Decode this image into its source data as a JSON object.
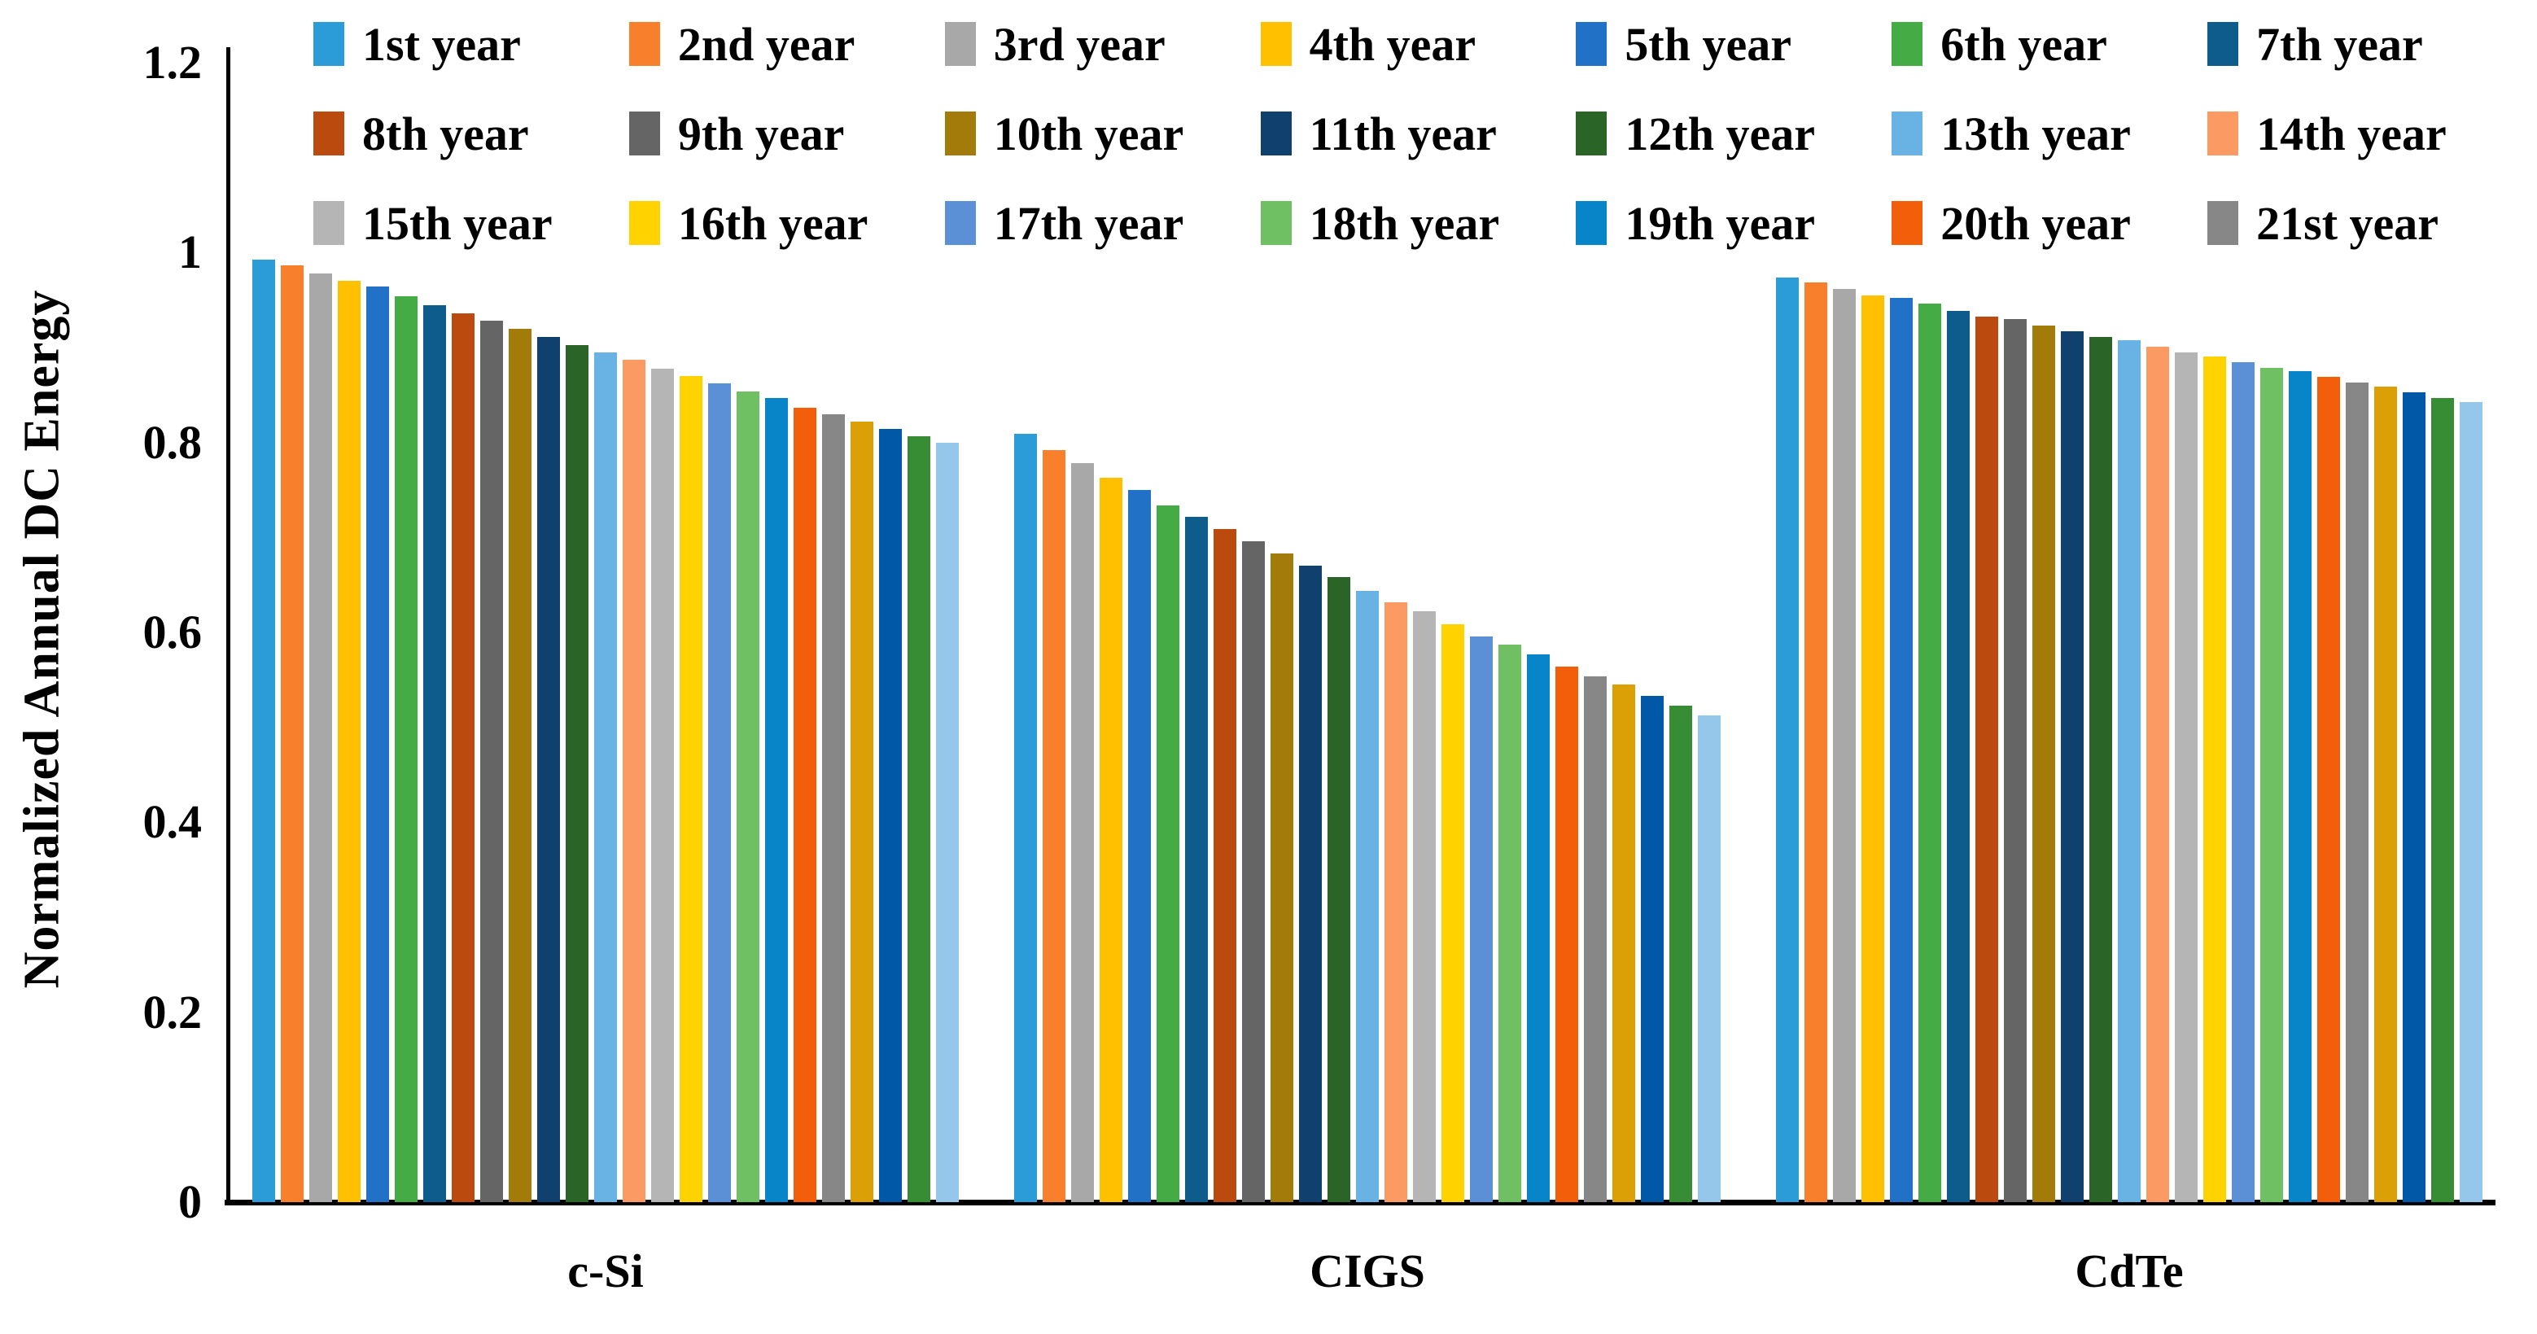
{
  "chart_data": {
    "type": "bar",
    "title": "",
    "ylabel": "Normalized Annual DC Energy",
    "xlabel": "",
    "ylim": [
      0,
      1.2
    ],
    "yticks": [
      0,
      0.2,
      0.4,
      0.6,
      0.8,
      1,
      1.2
    ],
    "ytick_labels": [
      "0",
      "0.2",
      "0.4",
      "0.6",
      "0.8",
      "1",
      "1.2"
    ],
    "grid": false,
    "legend_position": "top",
    "years_per_group": 25,
    "legend": [
      {
        "label": "1st year",
        "color": "#2B9CD8"
      },
      {
        "label": "2nd year",
        "color": "#F87F2C"
      },
      {
        "label": "3rd year",
        "color": "#A8A8A8"
      },
      {
        "label": "4th year",
        "color": "#FFC000"
      },
      {
        "label": "5th year",
        "color": "#2171C7"
      },
      {
        "label": "6th year",
        "color": "#45AB45"
      },
      {
        "label": "7th year",
        "color": "#0E5C8C"
      },
      {
        "label": "8th year",
        "color": "#BB4A0F"
      },
      {
        "label": "9th year",
        "color": "#656565"
      },
      {
        "label": "10th year",
        "color": "#A37B0A"
      },
      {
        "label": "11th year",
        "color": "#0F406E"
      },
      {
        "label": "12th year",
        "color": "#2A6426"
      },
      {
        "label": "13th year",
        "color": "#68B3E4"
      },
      {
        "label": "14th year",
        "color": "#FB9A62"
      },
      {
        "label": "15th year",
        "color": "#B5B5B5"
      },
      {
        "label": "16th year",
        "color": "#FFD200"
      },
      {
        "label": "17th year",
        "color": "#5B8FD6"
      },
      {
        "label": "18th year",
        "color": "#6EC063"
      },
      {
        "label": "19th year",
        "color": "#0884C9"
      },
      {
        "label": "20th year",
        "color": "#F25E0A"
      },
      {
        "label": "21st year",
        "color": "#878787"
      }
    ],
    "palette": [
      "#2B9CD8",
      "#F87F2C",
      "#A8A8A8",
      "#FFC000",
      "#2171C7",
      "#45AB45",
      "#0E5C8C",
      "#BB4A0F",
      "#656565",
      "#A37B0A",
      "#0F406E",
      "#2A6426",
      "#68B3E4",
      "#FB9A62",
      "#B5B5B5",
      "#FFD200",
      "#5B8FD6",
      "#6EC063",
      "#0884C9",
      "#F25E0A",
      "#878787",
      "#DAA005",
      "#0058A6",
      "#378D34",
      "#94C7E9"
    ],
    "groups": [
      {
        "label": "c-Si",
        "values": [
          0.993,
          0.987,
          0.978,
          0.97,
          0.964,
          0.954,
          0.945,
          0.936,
          0.928,
          0.92,
          0.911,
          0.903,
          0.895,
          0.887,
          0.878,
          0.87,
          0.862,
          0.854,
          0.847,
          0.837,
          0.83,
          0.822,
          0.814,
          0.807,
          0.8
        ]
      },
      {
        "label": "CIGS",
        "values": [
          0.809,
          0.792,
          0.778,
          0.763,
          0.75,
          0.734,
          0.722,
          0.709,
          0.696,
          0.683,
          0.67,
          0.658,
          0.644,
          0.632,
          0.622,
          0.609,
          0.596,
          0.587,
          0.577,
          0.564,
          0.554,
          0.545,
          0.533,
          0.523,
          0.513
        ]
      },
      {
        "label": "CdTe",
        "values": [
          0.974,
          0.969,
          0.962,
          0.955,
          0.952,
          0.946,
          0.939,
          0.933,
          0.93,
          0.923,
          0.917,
          0.911,
          0.908,
          0.901,
          0.895,
          0.891,
          0.885,
          0.879,
          0.875,
          0.869,
          0.863,
          0.859,
          0.853,
          0.847,
          0.843
        ]
      }
    ]
  }
}
